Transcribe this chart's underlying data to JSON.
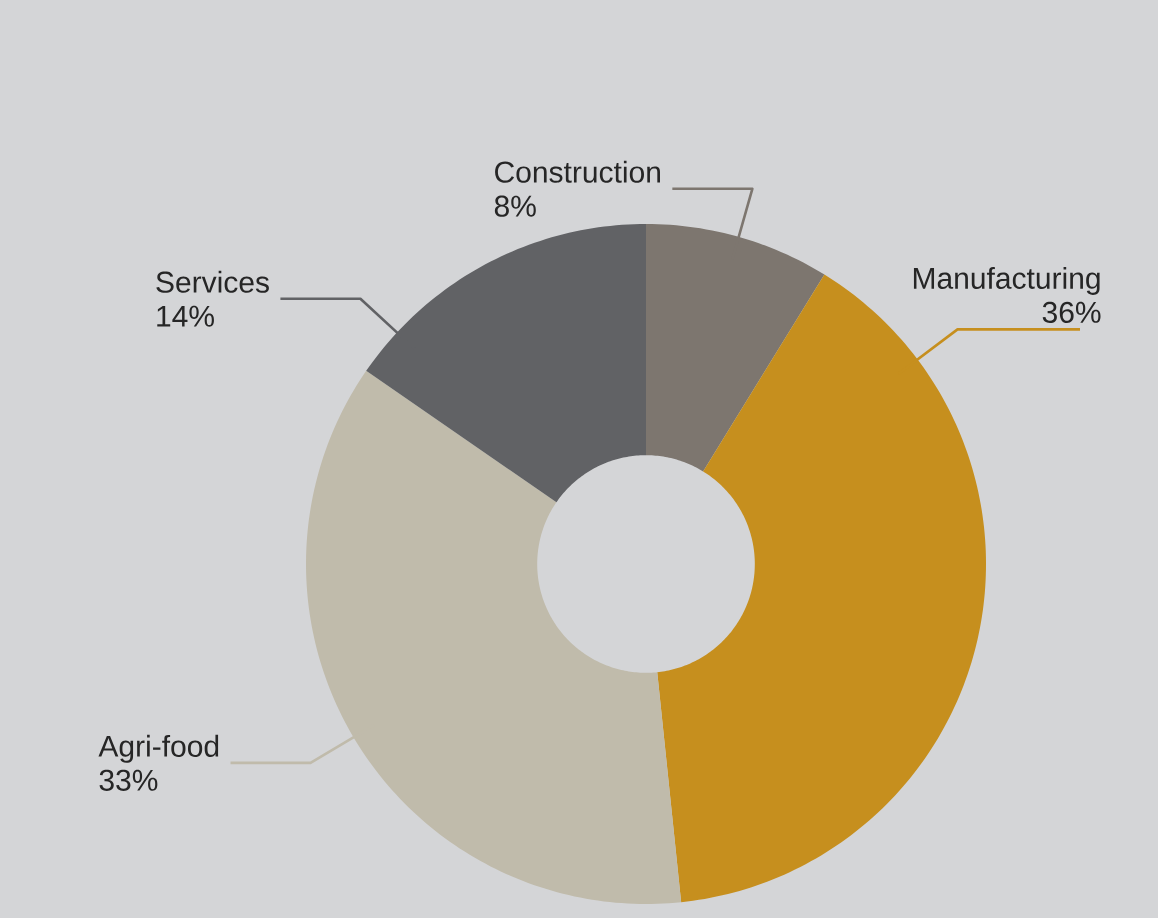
{
  "chart_data": {
    "type": "donut",
    "categories": [
      "Construction",
      "Manufacturing",
      "Agri-food",
      "Services"
    ],
    "values": [
      8,
      36,
      33,
      14
    ],
    "value_labels": [
      "8%",
      "36%",
      "33%",
      "14%"
    ],
    "colors": [
      "#7d766f",
      "#c68f1e",
      "#c0bbab",
      "#616265"
    ]
  }
}
